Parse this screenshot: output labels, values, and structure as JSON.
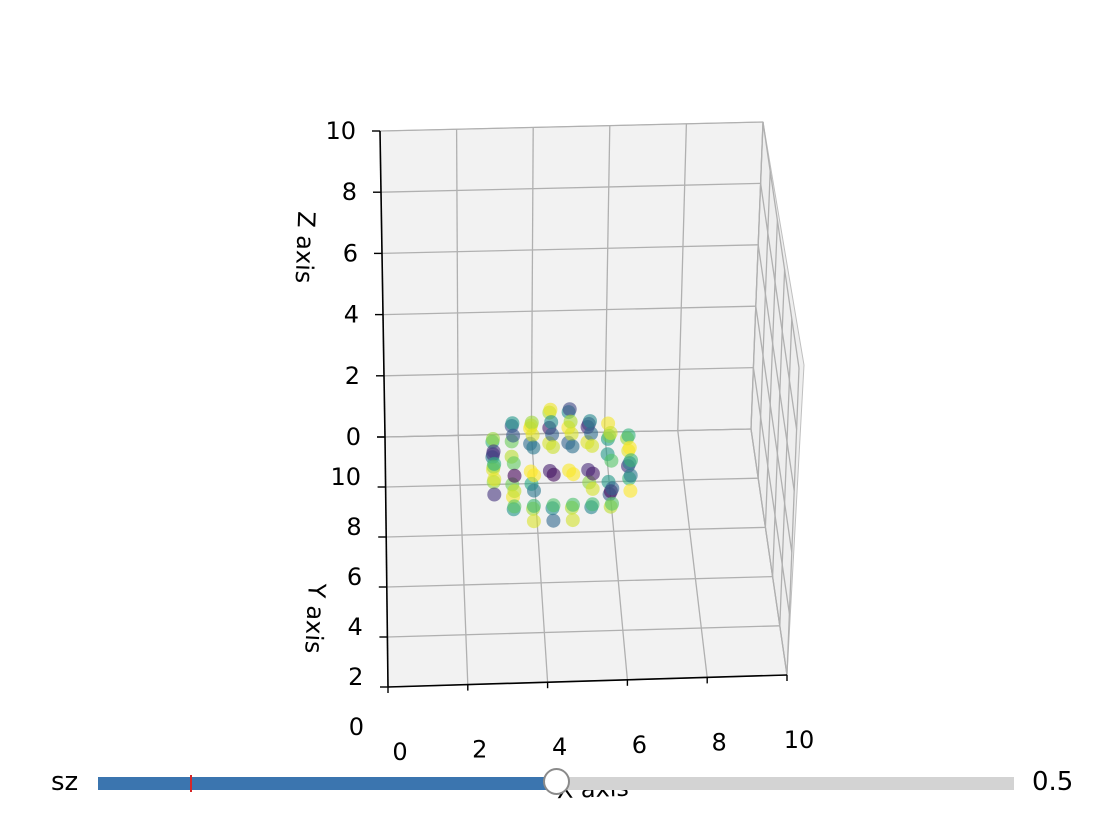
{
  "chart_data": {
    "type": "scatter",
    "projection": "3d",
    "title": "",
    "xlabel": "X axis",
    "ylabel": "Y axis",
    "zlabel": "Z axis",
    "xlim": [
      0,
      10
    ],
    "ylim": [
      0,
      10
    ],
    "zlim": [
      0,
      10
    ],
    "x_ticks": [
      "0",
      "2",
      "4",
      "6",
      "8",
      "10"
    ],
    "y_ticks": [
      "0",
      "2",
      "4",
      "6",
      "8",
      "10"
    ],
    "z_ticks": [
      "0",
      "2",
      "4",
      "6",
      "8",
      "10"
    ],
    "grid": true,
    "colormap": "viridis",
    "shape": "ellipsoid",
    "center": [
      4.5,
      5,
      3
    ],
    "radii": [
      2.2,
      1.6,
      1.4
    ],
    "grid_step": 0.5
  },
  "slider": {
    "label": "sz",
    "value_text": "0.5",
    "fraction": 0.5,
    "initial_fraction": 0.1,
    "fill_color": "#3b75af",
    "track_color": "#d3d3d3",
    "init_marker_color": "#d62728"
  }
}
